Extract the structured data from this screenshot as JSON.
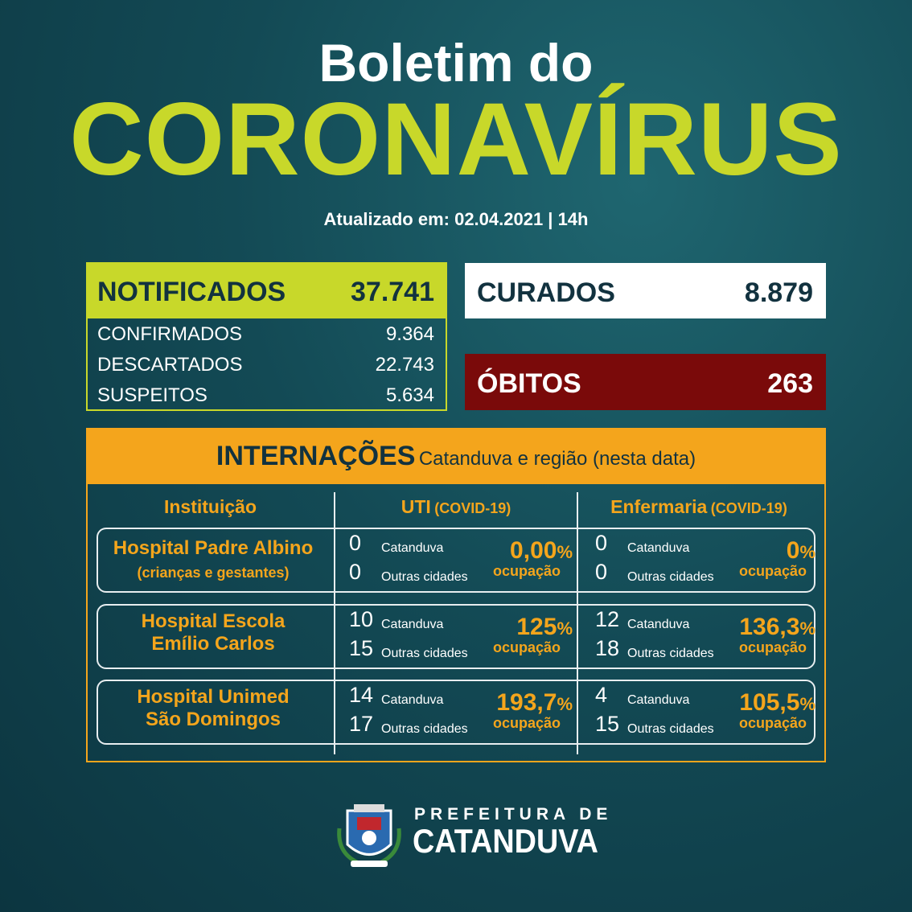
{
  "header": {
    "title_line1": "Boletim do",
    "title_line2": "CORONAVÍRUS",
    "updated": "Atualizado em: 02.04.2021 | 14h"
  },
  "notificados": {
    "label": "NOTIFICADOS",
    "value": "37.741",
    "rows": [
      {
        "label": "CONFIRMADOS",
        "value": "9.364"
      },
      {
        "label": "DESCARTADOS",
        "value": "22.743"
      },
      {
        "label": "SUSPEITOS",
        "value": "5.634"
      }
    ]
  },
  "curados": {
    "label": "CURADOS",
    "value": "8.879"
  },
  "obitos": {
    "label": "ÓBITOS",
    "value": "263"
  },
  "internacoes": {
    "title": "INTERNAÇÕES",
    "subtitle": "Catanduva e região (nesta data)",
    "columns": [
      {
        "name": "Instituição"
      },
      {
        "name": "UTI",
        "note": "(COVID-19)"
      },
      {
        "name": "Enfermaria",
        "note": "(COVID-19)"
      }
    ],
    "rows": [
      {
        "name": [
          "Hospital Padre Albino",
          "(crianças e gestantes)"
        ],
        "uti": {
          "catanduva": 0,
          "catanduva_label": "Catanduva",
          "outras": 0,
          "outras_label": "Outras cidades",
          "occupancy": "0,00",
          "unit": "%",
          "occupancy_label": "ocupação"
        },
        "enfermaria": {
          "catanduva": 0,
          "catanduva_label": "Catanduva",
          "outras": 0,
          "outras_label": "Outras cidades",
          "occupancy": "0",
          "unit": "%",
          "occupancy_label": "ocupação"
        }
      },
      {
        "name": [
          "Hospital Escola",
          "Emílio Carlos"
        ],
        "uti": {
          "catanduva": 10,
          "catanduva_label": "Catanduva",
          "outras": 15,
          "outras_label": "Outras cidades",
          "occupancy": "125",
          "unit": "%",
          "occupancy_label": "ocupação"
        },
        "enfermaria": {
          "catanduva": 12,
          "catanduva_label": "Catanduva",
          "outras": 18,
          "outras_label": "Outras cidades",
          "occupancy": "136,3",
          "unit": "%",
          "occupancy_label": "ocupação"
        }
      },
      {
        "name": [
          "Hospital Unimed",
          "São Domingos"
        ],
        "uti": {
          "catanduva": 14,
          "catanduva_label": "Catanduva",
          "outras": 17,
          "outras_label": "Outras cidades",
          "occupancy": "193,7",
          "unit": "%",
          "occupancy_label": "ocupação"
        },
        "enfermaria": {
          "catanduva": 4,
          "catanduva_label": "Catanduva",
          "outras": 15,
          "outras_label": "Outras cidades",
          "occupancy": "105,5",
          "unit": "%",
          "occupancy_label": "ocupação"
        }
      }
    ]
  },
  "footer": {
    "line1": "PREFEITURA DE",
    "line2": "CATANDUVA"
  }
}
